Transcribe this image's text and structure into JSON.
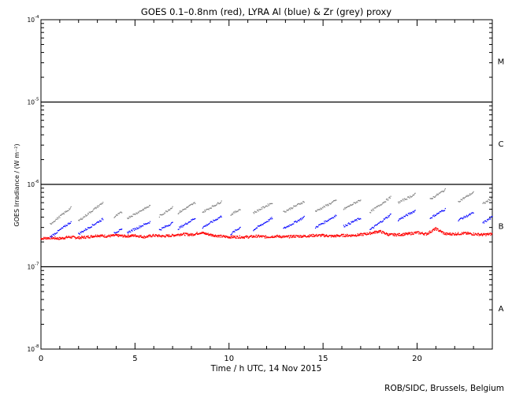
{
  "chart_data": {
    "type": "scatter",
    "title": "GOES 0.1–0.8nm (red), LYRA Al (blue) & Zr (grey) proxy",
    "xlabel": "Time / h UTC, 14 Nov 2015",
    "ylabel": "GOES Irradiance / (W m⁻²)",
    "xlim": [
      0,
      24
    ],
    "ylim": [
      1e-08,
      0.0001
    ],
    "yscale": "log",
    "x_ticks": [
      0,
      5,
      10,
      15,
      20
    ],
    "y_ticks": [
      {
        "value": 1e-08,
        "base": "10",
        "exp": "-8"
      },
      {
        "value": 1e-07,
        "base": "10",
        "exp": "-7"
      },
      {
        "value": 1e-06,
        "base": "10",
        "exp": "-6"
      },
      {
        "value": 1e-05,
        "base": "10",
        "exp": "-5"
      },
      {
        "value": 0.0001,
        "base": "10",
        "exp": "-4"
      }
    ],
    "flare_class_lines": [
      1e-07,
      1e-06,
      1e-05
    ],
    "flare_class_labels": [
      {
        "label": "A",
        "value": 3.16e-08
      },
      {
        "label": "B",
        "value": 3.16e-07
      },
      {
        "label": "C",
        "value": 3.16e-06
      },
      {
        "label": "M",
        "value": 3.16e-05
      }
    ],
    "series": [
      {
        "color": "#ff0000",
        "x": [
          0.0,
          0.5,
          1.0,
          1.5,
          2.0,
          2.5,
          3.0,
          3.5,
          4.0,
          4.5,
          5.0,
          5.5,
          6.0,
          6.5,
          7.0,
          7.5,
          8.0,
          8.5,
          9.0,
          9.5,
          10.0,
          10.5,
          11.0,
          11.5,
          12.0,
          12.5,
          13.0,
          13.5,
          14.0,
          14.5,
          15.0,
          15.5,
          16.0,
          16.5,
          17.0,
          17.5,
          18.0,
          18.5,
          19.0,
          19.5,
          20.0,
          20.5,
          21.0,
          21.5,
          22.0,
          22.5,
          23.0,
          23.5,
          24.0
        ],
        "y": [
          2.2e-07,
          2.25e-07,
          2.2e-07,
          2.3e-07,
          2.25e-07,
          2.3e-07,
          2.4e-07,
          2.35e-07,
          2.4e-07,
          2.35e-07,
          2.4e-07,
          2.3e-07,
          2.4e-07,
          2.35e-07,
          2.4e-07,
          2.5e-07,
          2.45e-07,
          2.6e-07,
          2.45e-07,
          2.35e-07,
          2.3e-07,
          2.3e-07,
          2.3e-07,
          2.35e-07,
          2.3e-07,
          2.35e-07,
          2.3e-07,
          2.35e-07,
          2.35e-07,
          2.4e-07,
          2.4e-07,
          2.35e-07,
          2.4e-07,
          2.4e-07,
          2.45e-07,
          2.55e-07,
          2.7e-07,
          2.45e-07,
          2.45e-07,
          2.5e-07,
          2.6e-07,
          2.5e-07,
          2.9e-07,
          2.5e-07,
          2.5e-07,
          2.55e-07,
          2.5e-07,
          2.45e-07,
          2.5e-07
        ]
      },
      {
        "color": "#0000ff",
        "segments": [
          {
            "x": [
              0.5,
              1.6
            ],
            "y": [
              2.3e-07,
              3.5e-07
            ]
          },
          {
            "x": [
              2.0,
              3.3
            ],
            "y": [
              2.5e-07,
              3.8e-07
            ]
          },
          {
            "x": [
              3.9,
              4.3
            ],
            "y": [
              2.6e-07,
              2.8e-07
            ]
          },
          {
            "x": [
              4.6,
              5.8
            ],
            "y": [
              2.6e-07,
              3.5e-07
            ]
          },
          {
            "x": [
              6.3,
              7.0
            ],
            "y": [
              2.8e-07,
              3.4e-07
            ]
          },
          {
            "x": [
              7.3,
              8.2
            ],
            "y": [
              2.9e-07,
              3.9e-07
            ]
          },
          {
            "x": [
              8.6,
              9.6
            ],
            "y": [
              3e-07,
              4.1e-07
            ]
          },
          {
            "x": [
              10.1,
              10.6
            ],
            "y": [
              2.5e-07,
              3e-07
            ]
          },
          {
            "x": [
              11.3,
              12.3
            ],
            "y": [
              2.8e-07,
              3.9e-07
            ]
          },
          {
            "x": [
              12.9,
              14.0
            ],
            "y": [
              2.9e-07,
              4e-07
            ]
          },
          {
            "x": [
              14.6,
              15.7
            ],
            "y": [
              3e-07,
              4.2e-07
            ]
          },
          {
            "x": [
              16.1,
              17.0
            ],
            "y": [
              3.1e-07,
              3.9e-07
            ]
          },
          {
            "x": [
              17.5,
              18.6
            ],
            "y": [
              2.8e-07,
              4.3e-07
            ]
          },
          {
            "x": [
              19.0,
              19.9
            ],
            "y": [
              3.7e-07,
              4.8e-07
            ]
          },
          {
            "x": [
              20.7,
              21.5
            ],
            "y": [
              3.9e-07,
              5e-07
            ]
          },
          {
            "x": [
              22.2,
              23.0
            ],
            "y": [
              3.7e-07,
              4.5e-07
            ]
          },
          {
            "x": [
              23.5,
              24.0
            ],
            "y": [
              3.4e-07,
              4e-07
            ]
          }
        ]
      },
      {
        "color": "#808080",
        "segments": [
          {
            "x": [
              0.5,
              1.6
            ],
            "y": [
              3.3e-07,
              5.2e-07
            ]
          },
          {
            "x": [
              2.0,
              3.3
            ],
            "y": [
              3.6e-07,
              6e-07
            ]
          },
          {
            "x": [
              3.9,
              4.3
            ],
            "y": [
              4e-07,
              4.6e-07
            ]
          },
          {
            "x": [
              4.6,
              5.8
            ],
            "y": [
              3.9e-07,
              5.5e-07
            ]
          },
          {
            "x": [
              6.3,
              7.0
            ],
            "y": [
              4.1e-07,
              5.3e-07
            ]
          },
          {
            "x": [
              7.3,
              8.2
            ],
            "y": [
              4.5e-07,
              6e-07
            ]
          },
          {
            "x": [
              8.6,
              9.6
            ],
            "y": [
              4.6e-07,
              6.2e-07
            ]
          },
          {
            "x": [
              10.1,
              10.6
            ],
            "y": [
              4.3e-07,
              5e-07
            ]
          },
          {
            "x": [
              11.3,
              12.3
            ],
            "y": [
              4.5e-07,
              6e-07
            ]
          },
          {
            "x": [
              12.9,
              14.0
            ],
            "y": [
              4.6e-07,
              6.2e-07
            ]
          },
          {
            "x": [
              14.6,
              15.7
            ],
            "y": [
              4.7e-07,
              6.4e-07
            ]
          },
          {
            "x": [
              16.1,
              17.0
            ],
            "y": [
              5e-07,
              6.5e-07
            ]
          },
          {
            "x": [
              17.5,
              18.6
            ],
            "y": [
              4.6e-07,
              7e-07
            ]
          },
          {
            "x": [
              19.0,
              19.9
            ],
            "y": [
              6e-07,
              7.6e-07
            ]
          },
          {
            "x": [
              20.7,
              21.5
            ],
            "y": [
              6.6e-07,
              8.6e-07
            ]
          },
          {
            "x": [
              22.2,
              23.0
            ],
            "y": [
              6.2e-07,
              8e-07
            ]
          },
          {
            "x": [
              23.5,
              24.0
            ],
            "y": [
              5.8e-07,
              6.8e-07
            ]
          }
        ]
      }
    ],
    "footer": "ROB/SIDC, Brussels, Belgium"
  }
}
